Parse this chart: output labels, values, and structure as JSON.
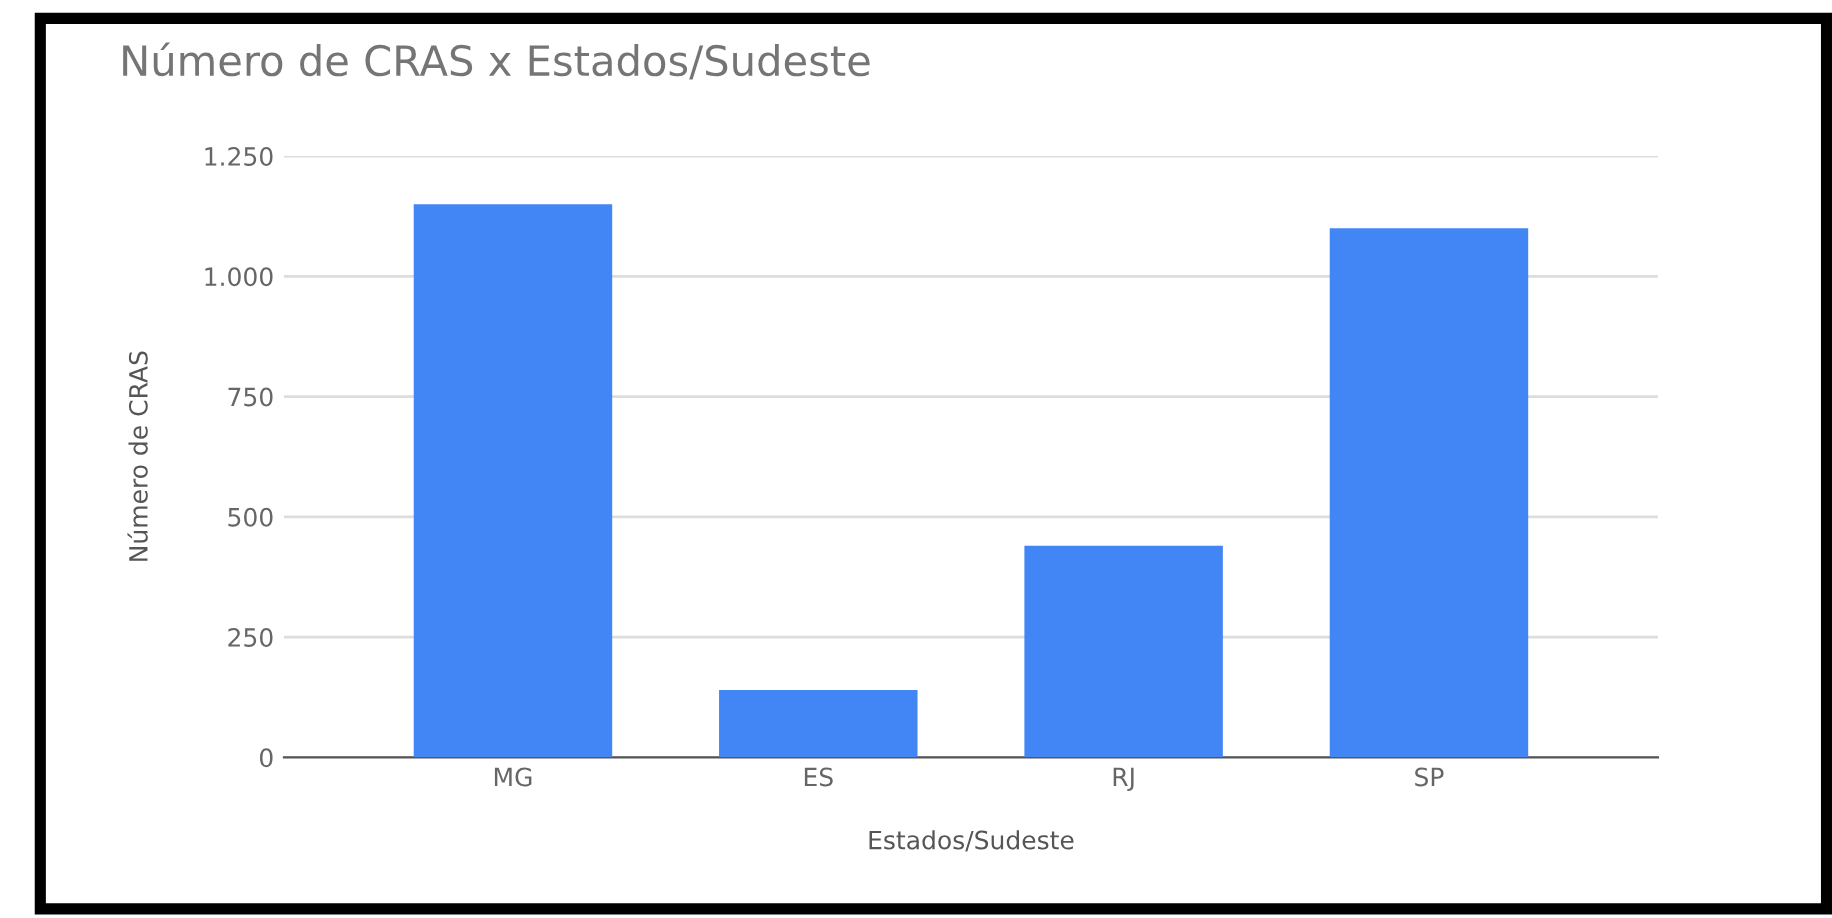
{
  "chart_data": {
    "type": "bar",
    "title": "Número de CRAS x Estados/Sudeste",
    "xlabel": "Estados/Sudeste",
    "ylabel": "Número de CRAS",
    "categories": [
      "MG",
      "ES",
      "RJ",
      "SP"
    ],
    "values": [
      1150,
      140,
      440,
      1100
    ],
    "color": "#4285f4",
    "ylim": [
      0,
      1250
    ],
    "yticks": [
      0,
      250,
      500,
      750,
      {
        "value": 1000,
        "label": "1.000"
      },
      {
        "value": 1250,
        "label": "1.250"
      }
    ],
    "grid": "y"
  }
}
